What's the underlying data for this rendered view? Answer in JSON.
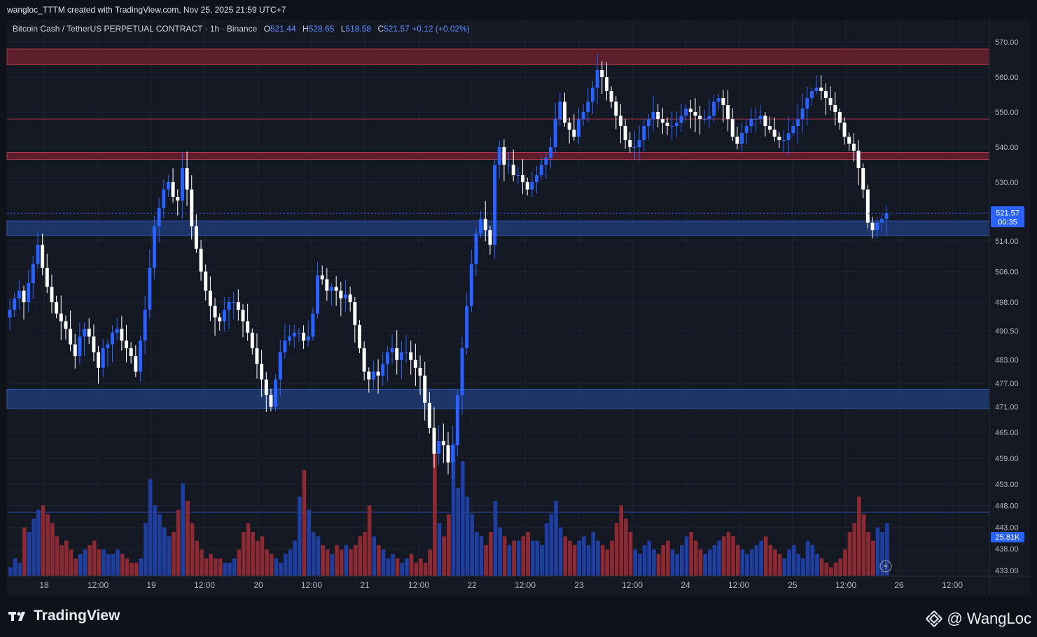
{
  "header": {
    "credit": "wangloc_TTTM created with TradingView.com, Nov 25, 2025 21:59 UTC+7"
  },
  "legend": {
    "symbol": "Bitcoin Cash / TetherUS PERPETUAL CONTRACT · 1h · Binance",
    "o_label": "O",
    "o": "521.44",
    "h_label": "H",
    "h": "528.65",
    "l_label": "L",
    "l": "518.58",
    "c_label": "C",
    "c": "521.57",
    "change": "+0.12 (+0.02%)"
  },
  "footer": {
    "brand": "TradingView",
    "author": "@ WangLoc"
  },
  "colors": {
    "up": "#2962ff",
    "down": "#ffffff",
    "vol_up": "#1e3fa0",
    "vol_down": "#8c2a34",
    "resistance_zone": "#5c1e2a",
    "support_zone": "#1c3466",
    "background": "#141823"
  },
  "chart_data": {
    "type": "candlestick",
    "interval": "1h",
    "price_scale": [
      433,
      470,
      490.5,
      514,
      530,
      570
    ],
    "price_ticks": [
      "570.00",
      "560.00",
      "550.00",
      "540.00",
      "530.00",
      "514.00",
      "506.00",
      "498.00",
      "490.50",
      "483.00",
      "477.00",
      "471.00",
      "465.00",
      "459.00",
      "453.00",
      "448.00",
      "443.00",
      "438.00",
      "433.00"
    ],
    "time_ticks": [
      "18",
      "12:00",
      "19",
      "12:00",
      "20",
      "12:00",
      "21",
      "12:00",
      "22",
      "12:00",
      "23",
      "12:00",
      "24",
      "12:00",
      "25",
      "12:00",
      "26",
      "12:00"
    ],
    "last_price": "521.57",
    "countdown": "00:35",
    "last_volume": "25.81K",
    "resistance_zones": [
      [
        563.5,
        568
      ],
      [
        536.5,
        538.5
      ]
    ],
    "support_zones": [
      [
        515.5,
        519.5
      ],
      [
        470.5,
        475.5
      ]
    ],
    "resistance_lines": [
      548
    ],
    "volume_line": 446.5,
    "closes": [
      496,
      499,
      501,
      498,
      503,
      508,
      513,
      507,
      502,
      498,
      495,
      493,
      491,
      487,
      484,
      489,
      491,
      489,
      485,
      481,
      486,
      487,
      490,
      491,
      488,
      486,
      484,
      480,
      488,
      496,
      507,
      518,
      523,
      528,
      530,
      526,
      525,
      534,
      528,
      518,
      512,
      506,
      501,
      497,
      494,
      493,
      496,
      498,
      498,
      496,
      493,
      490,
      486,
      482,
      478,
      474,
      471,
      478,
      485,
      488,
      489,
      490,
      490,
      488,
      489,
      495,
      505,
      504,
      501,
      502,
      501,
      499,
      500,
      498,
      492,
      486,
      480,
      478,
      480,
      479,
      482,
      485,
      486,
      483,
      485,
      485,
      483,
      481,
      479,
      472,
      466,
      460,
      463,
      462,
      458,
      462,
      474,
      486,
      497,
      508,
      516,
      520,
      517,
      513,
      535,
      540,
      535,
      535,
      532,
      532,
      530,
      528,
      530,
      532,
      535,
      537,
      540,
      548,
      553,
      547,
      545,
      543,
      548,
      550,
      553,
      557,
      562,
      560,
      556,
      553,
      549,
      546,
      542,
      540,
      540,
      542,
      546,
      548,
      550,
      548,
      547,
      546,
      546,
      547,
      549,
      551,
      550,
      549,
      548,
      548,
      549,
      553,
      554,
      552,
      548,
      543,
      541,
      544,
      546,
      548,
      548,
      549,
      546,
      545,
      543,
      542,
      542,
      544,
      546,
      548,
      551,
      554,
      556,
      557,
      556,
      554,
      552,
      550,
      547,
      543,
      541,
      539,
      534,
      528,
      519,
      517,
      519,
      520,
      521.57
    ],
    "volumes": [
      2,
      4,
      3,
      11,
      10,
      13,
      15,
      16,
      14,
      12,
      9,
      7,
      8,
      6,
      4,
      5,
      6,
      7,
      8,
      6,
      6,
      5,
      5,
      6,
      5,
      4,
      3,
      3,
      4,
      12,
      22,
      16,
      14,
      11,
      9,
      10,
      15,
      21,
      17,
      12,
      8,
      6,
      4,
      5,
      4,
      4,
      3,
      3,
      4,
      6,
      10,
      12,
      10,
      8,
      9,
      6,
      5,
      4,
      3,
      5,
      6,
      8,
      18,
      24,
      15,
      10,
      9,
      7,
      6,
      5,
      7,
      6,
      7,
      6,
      7,
      9,
      10,
      16,
      9,
      7,
      6,
      4,
      5,
      4,
      3,
      4,
      5,
      3,
      4,
      3,
      6,
      28,
      12,
      9,
      14,
      30,
      20,
      26,
      18,
      14,
      10,
      9,
      7,
      10,
      17,
      11,
      9,
      7,
      8,
      8,
      9,
      10,
      8,
      8,
      7,
      12,
      14,
      17,
      11,
      9,
      8,
      7,
      8,
      9,
      7,
      10,
      8,
      7,
      6,
      8,
      12,
      16,
      13,
      10,
      6,
      5,
      7,
      8,
      6,
      5,
      7,
      8,
      6,
      5,
      7,
      9,
      10,
      8,
      6,
      5,
      6,
      7,
      8,
      9,
      10,
      9,
      7,
      6,
      5,
      6,
      7,
      8,
      9,
      7,
      6,
      5,
      4,
      6,
      7,
      5,
      4,
      8,
      7,
      5,
      4,
      3,
      2,
      3,
      4,
      6,
      10,
      12,
      18,
      14,
      10,
      8,
      11,
      10,
      12
    ]
  }
}
